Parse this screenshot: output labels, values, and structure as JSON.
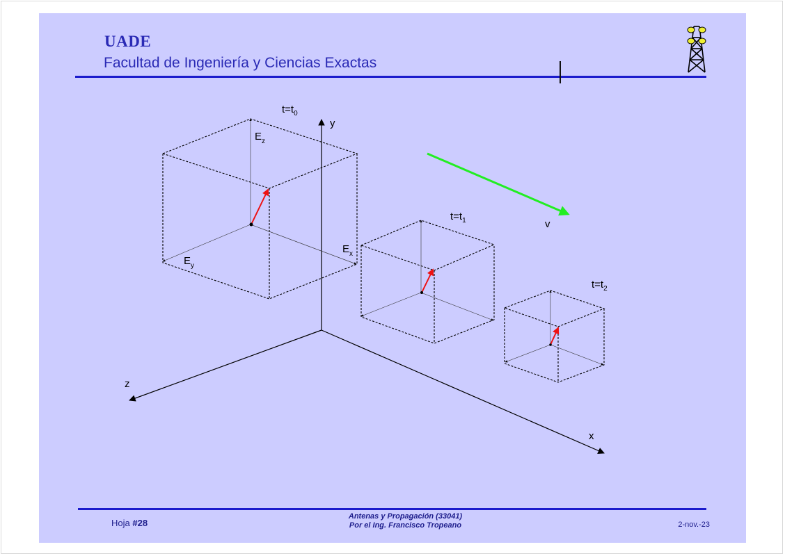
{
  "header": {
    "org": "UADE",
    "faculty": "Facultad de Ingeniería y Ciencias Exactas",
    "logo_icon": "transmission-tower-icon"
  },
  "diagram": {
    "axes": {
      "x": "x",
      "y": "y",
      "z": "z"
    },
    "velocity_label": "v",
    "field_components": {
      "ez": {
        "main": "E",
        "sub": "z"
      },
      "ex": {
        "main": "E",
        "sub": "x"
      },
      "ey": {
        "main": "E",
        "sub": "y"
      }
    },
    "times": [
      {
        "main": "t=t",
        "sub": "0"
      },
      {
        "main": "t=t",
        "sub": "1"
      },
      {
        "main": "t=t",
        "sub": "2"
      }
    ],
    "colors": {
      "field_vector": "#ee1111",
      "velocity_arrow": "#22ee22",
      "axes": "#000000",
      "cube_edges": "#000000"
    }
  },
  "footer": {
    "sheet_prefix": "Hoja ",
    "sheet_number": "#28",
    "course_line1": "Antenas y Propagación (33041)",
    "course_line2": "Por el Ing. Francisco Tropeano",
    "date": "2-nov.-23"
  }
}
